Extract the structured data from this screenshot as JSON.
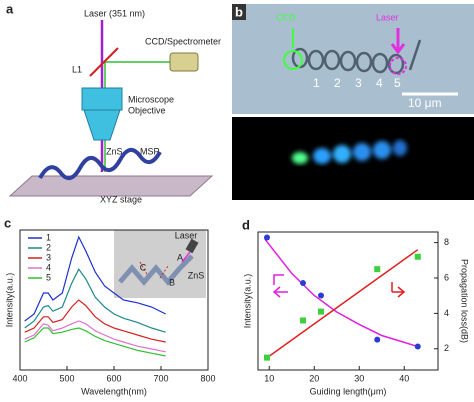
{
  "panel_a": {
    "label": "a",
    "laser": "Laser (351 nm)",
    "detector": "CCD/Spectrometer",
    "lens": "L1",
    "objective": [
      "Microscope",
      "Objective"
    ],
    "material": "ZnS",
    "sample": "MSP",
    "stage": "XYZ stage"
  },
  "panel_b": {
    "label": "b",
    "ccd": "CCD",
    "laser": "Laser",
    "positions": [
      "1",
      "2",
      "3",
      "4",
      "5"
    ],
    "scale_bar": "10 μm"
  },
  "chart_data": [
    {
      "type": "line",
      "label": "c",
      "xlabel": "Wavelength(nm)",
      "ylabel": "Intensity(a.u.)",
      "xlim": [
        400,
        800
      ],
      "xticks": [
        400,
        500,
        600,
        700,
        800
      ],
      "ylim": [
        0,
        1
      ],
      "x": [
        410,
        430,
        450,
        460,
        470,
        490,
        510,
        525,
        540,
        560,
        580,
        600,
        620,
        650,
        680,
        710
      ],
      "series": [
        {
          "name": "1",
          "color": "#1f2fd0",
          "values": [
            0.35,
            0.4,
            0.55,
            0.55,
            0.5,
            0.55,
            0.8,
            0.95,
            0.85,
            0.7,
            0.6,
            0.55,
            0.5,
            0.48,
            0.45,
            0.4
          ]
        },
        {
          "name": "2",
          "color": "#1e8a8a",
          "values": [
            0.3,
            0.35,
            0.45,
            0.46,
            0.42,
            0.45,
            0.62,
            0.72,
            0.65,
            0.52,
            0.45,
            0.4,
            0.37,
            0.34,
            0.3,
            0.27
          ]
        },
        {
          "name": "3",
          "color": "#d42020",
          "values": [
            0.27,
            0.3,
            0.38,
            0.38,
            0.34,
            0.36,
            0.45,
            0.5,
            0.46,
            0.38,
            0.33,
            0.3,
            0.28,
            0.25,
            0.22,
            0.2
          ]
        },
        {
          "name": "4",
          "color": "#e070d0",
          "values": [
            0.22,
            0.25,
            0.33,
            0.32,
            0.28,
            0.3,
            0.33,
            0.35,
            0.33,
            0.28,
            0.25,
            0.22,
            0.2,
            0.17,
            0.15,
            0.13
          ]
        },
        {
          "name": "5",
          "color": "#30c030",
          "values": [
            0.2,
            0.23,
            0.3,
            0.3,
            0.26,
            0.27,
            0.29,
            0.3,
            0.28,
            0.24,
            0.21,
            0.19,
            0.17,
            0.14,
            0.12,
            0.1
          ]
        }
      ],
      "annotations": [
        "Laser",
        "A",
        "B",
        "C",
        "ZnS"
      ]
    },
    {
      "type": "scatter",
      "label": "d",
      "xlabel": "Guiding length(μm)",
      "ylabel": "Intensity(a.u.)",
      "y2label": "Propagation loss(dB)",
      "xlim": [
        7.5,
        47.5
      ],
      "xticks": [
        10,
        20,
        30,
        40
      ],
      "ylim": [
        0,
        1
      ],
      "y2lim": [
        0.8,
        8.6
      ],
      "y2ticks": [
        2,
        4,
        6,
        8
      ],
      "series": [
        {
          "color": "#e020e0",
          "style": "line",
          "axis": "y",
          "x": [
            9,
            15,
            20,
            25,
            30,
            35,
            40,
            43
          ],
          "values": [
            0.95,
            0.7,
            0.54,
            0.42,
            0.33,
            0.25,
            0.2,
            0.17
          ]
        },
        {
          "color": "#e02020",
          "style": "line",
          "axis": "y2",
          "x": [
            9,
            43
          ],
          "values": [
            1.4,
            7.6
          ]
        },
        {
          "color": "#2a3bd6",
          "marker": "circle",
          "axis": "y",
          "x": [
            9.5,
            17.5,
            21.5,
            34,
            43
          ],
          "values": [
            0.96,
            0.63,
            0.54,
            0.22,
            0.17
          ]
        },
        {
          "color": "#3ecf3e",
          "marker": "square",
          "axis": "y2",
          "x": [
            9.5,
            17.5,
            21.5,
            34,
            43
          ],
          "values": [
            1.5,
            3.6,
            4.1,
            6.5,
            7.2
          ]
        }
      ]
    }
  ]
}
